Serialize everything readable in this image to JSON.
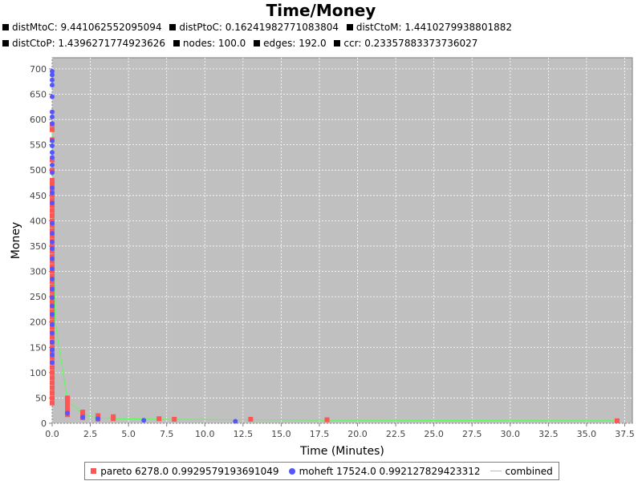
{
  "chart_data": {
    "type": "scatter",
    "title": "Time/Money",
    "subtitle": [
      "distMtoC: 9.441062552095094",
      "distPtoC: 0.16241982771083804",
      "distCtoM: 1.4410279938801882",
      "distCtoP: 1.4396271774923626",
      "nodes: 100.0",
      "edges: 192.0",
      "ccr: 0.23357883373736027"
    ],
    "xlabel": "Time (Minutes)",
    "ylabel": "Money",
    "xlim": [
      0,
      38
    ],
    "ylim": [
      0,
      722
    ],
    "xticks": [
      "0.0",
      "2.5",
      "5.0",
      "7.5",
      "10.0",
      "12.5",
      "15.0",
      "17.5",
      "20.0",
      "22.5",
      "25.0",
      "27.5",
      "30.0",
      "32.5",
      "35.0",
      "37.5"
    ],
    "yticks": [
      "0",
      "50",
      "100",
      "150",
      "200",
      "250",
      "300",
      "350",
      "400",
      "450",
      "500",
      "550",
      "600",
      "650",
      "700"
    ],
    "grid": true,
    "legend_position": "bottom",
    "colors": {
      "pareto": "#ff5555",
      "moheft": "#5555ff",
      "combined": "#55ff55",
      "plot_background": "#c0c0c0",
      "gridline": "#ffffff"
    },
    "series": [
      {
        "name": "pareto 6278.0 0.9929579193691049",
        "marker": "square",
        "points": [
          [
            0,
            590
          ],
          [
            0,
            580
          ],
          [
            0,
            560
          ],
          [
            0,
            520
          ],
          [
            0,
            500
          ],
          [
            0,
            480
          ],
          [
            0,
            475
          ],
          [
            0,
            470
          ],
          [
            0,
            460
          ],
          [
            0,
            450
          ],
          [
            0,
            440
          ],
          [
            0,
            430
          ],
          [
            0,
            420
          ],
          [
            0,
            410
          ],
          [
            0,
            400
          ],
          [
            0,
            390
          ],
          [
            0,
            380
          ],
          [
            0,
            370
          ],
          [
            0,
            360
          ],
          [
            0,
            350
          ],
          [
            0,
            340
          ],
          [
            0,
            330
          ],
          [
            0,
            320
          ],
          [
            0,
            310
          ],
          [
            0,
            300
          ],
          [
            0,
            290
          ],
          [
            0,
            280
          ],
          [
            0,
            270
          ],
          [
            0,
            260
          ],
          [
            0,
            250
          ],
          [
            0,
            240
          ],
          [
            0,
            230
          ],
          [
            0,
            220
          ],
          [
            0,
            210
          ],
          [
            0,
            200
          ],
          [
            0,
            190
          ],
          [
            0,
            180
          ],
          [
            0,
            170
          ],
          [
            0,
            160
          ],
          [
            0,
            150
          ],
          [
            0,
            140
          ],
          [
            0,
            130
          ],
          [
            0,
            120
          ],
          [
            0,
            110
          ],
          [
            0,
            100
          ],
          [
            0,
            90
          ],
          [
            0,
            80
          ],
          [
            0,
            70
          ],
          [
            0,
            60
          ],
          [
            0,
            50
          ],
          [
            0,
            40
          ],
          [
            1,
            50
          ],
          [
            1,
            45
          ],
          [
            1,
            40
          ],
          [
            1,
            35
          ],
          [
            1,
            30
          ],
          [
            1,
            25
          ],
          [
            1,
            20
          ],
          [
            1,
            17
          ],
          [
            2,
            22
          ],
          [
            2,
            18
          ],
          [
            2,
            14
          ],
          [
            2,
            11
          ],
          [
            3,
            15
          ],
          [
            3,
            11
          ],
          [
            3,
            8
          ],
          [
            4,
            13
          ],
          [
            4,
            9
          ],
          [
            7,
            9
          ],
          [
            8,
            8
          ],
          [
            13,
            8
          ],
          [
            18,
            7
          ],
          [
            37,
            5
          ]
        ]
      },
      {
        "name": "moheft 17524.0 0.992127829423312",
        "marker": "circle",
        "points": [
          [
            0,
            695
          ],
          [
            0,
            688
          ],
          [
            0,
            678
          ],
          [
            0,
            668
          ],
          [
            0,
            645
          ],
          [
            0,
            615
          ],
          [
            0,
            605
          ],
          [
            0,
            592
          ],
          [
            0,
            558
          ],
          [
            0,
            548
          ],
          [
            0,
            535
          ],
          [
            0,
            525
          ],
          [
            0,
            510
          ],
          [
            0,
            495
          ],
          [
            0,
            465
          ],
          [
            0,
            455
          ],
          [
            0,
            435
          ],
          [
            0,
            395
          ],
          [
            0,
            375
          ],
          [
            0,
            358
          ],
          [
            0,
            345
          ],
          [
            0,
            325
          ],
          [
            0,
            305
          ],
          [
            0,
            285
          ],
          [
            0,
            265
          ],
          [
            0,
            248
          ],
          [
            0,
            232
          ],
          [
            0,
            215
          ],
          [
            0,
            195
          ],
          [
            0,
            178
          ],
          [
            0,
            160
          ],
          [
            0,
            145
          ],
          [
            0,
            135
          ],
          [
            0,
            120
          ],
          [
            1,
            20
          ],
          [
            2,
            12
          ],
          [
            3,
            9
          ],
          [
            6,
            6
          ],
          [
            12,
            4
          ]
        ]
      },
      {
        "name": "combined",
        "marker": "line",
        "points": [
          [
            0,
            580
          ],
          [
            0.05,
            470
          ],
          [
            0.1,
            350
          ],
          [
            0.2,
            200
          ],
          [
            1,
            45
          ],
          [
            2,
            18
          ],
          [
            3,
            11
          ],
          [
            4,
            9
          ],
          [
            7,
            8
          ],
          [
            13,
            7
          ],
          [
            18,
            6
          ],
          [
            37,
            5
          ]
        ]
      }
    ]
  }
}
